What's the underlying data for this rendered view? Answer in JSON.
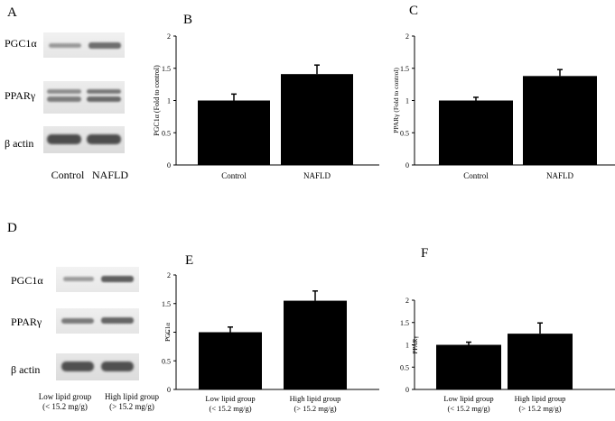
{
  "panels": {
    "A": {
      "letter": "A",
      "rows": [
        "PGC1α",
        "PPARγ",
        "β actin"
      ],
      "lanes": [
        "Control",
        "NAFLD"
      ]
    },
    "D": {
      "letter": "D",
      "rows": [
        "PGC1α",
        "PPARγ",
        "β actin"
      ],
      "lanes": [
        {
          "line1": "Low lipid group",
          "line2": "(< 15.2 mg/g)"
        },
        {
          "line1": "High lipid group",
          "line2": "(> 15.2 mg/g)"
        }
      ]
    }
  },
  "chart_data": [
    {
      "panel": "B",
      "type": "bar",
      "ylabel": "PGC1α (Fold to control)",
      "ylim": [
        0,
        2
      ],
      "yticks": [
        "0",
        "0.5",
        "1",
        "1.5",
        "2"
      ],
      "categories": [
        {
          "line1": "Control",
          "line2": ""
        },
        {
          "line1": "NAFLD",
          "line2": ""
        }
      ],
      "values": [
        1.0,
        1.41
      ],
      "errors": [
        0.1,
        0.14
      ],
      "bar_color": "#000000"
    },
    {
      "panel": "C",
      "type": "bar",
      "ylabel": "PPARγ (Fold to control)",
      "ylim": [
        0,
        2
      ],
      "yticks": [
        "0",
        "0.5",
        "1",
        "1.5",
        "2"
      ],
      "categories": [
        {
          "line1": "Control",
          "line2": ""
        },
        {
          "line1": "NAFLD",
          "line2": ""
        }
      ],
      "values": [
        1.0,
        1.38
      ],
      "errors": [
        0.05,
        0.1
      ],
      "bar_color": "#000000"
    },
    {
      "panel": "E",
      "type": "bar",
      "ylabel": "PGC1α",
      "ylim": [
        0,
        2
      ],
      "yticks": [
        "0",
        "0.5",
        "1",
        "1.5",
        "2"
      ],
      "categories": [
        {
          "line1": "Low lipid group",
          "line2": "(< 15.2 mg/g)"
        },
        {
          "line1": "High lipid group",
          "line2": "(> 15.2 mg/g)"
        }
      ],
      "values": [
        1.0,
        1.55
      ],
      "errors": [
        0.09,
        0.17
      ],
      "bar_color": "#000000"
    },
    {
      "panel": "F",
      "type": "bar",
      "ylabel": "PPARγ",
      "ylim": [
        0,
        2
      ],
      "yticks": [
        "0",
        "0.5",
        "1",
        "1.5",
        "2"
      ],
      "categories": [
        {
          "line1": "Low lipid group",
          "line2": "(< 15.2 mg/g)"
        },
        {
          "line1": "High lipid group",
          "line2": "(> 15.2 mg/g)"
        }
      ],
      "values": [
        1.0,
        1.25
      ],
      "errors": [
        0.06,
        0.24
      ],
      "bar_color": "#000000"
    }
  ]
}
